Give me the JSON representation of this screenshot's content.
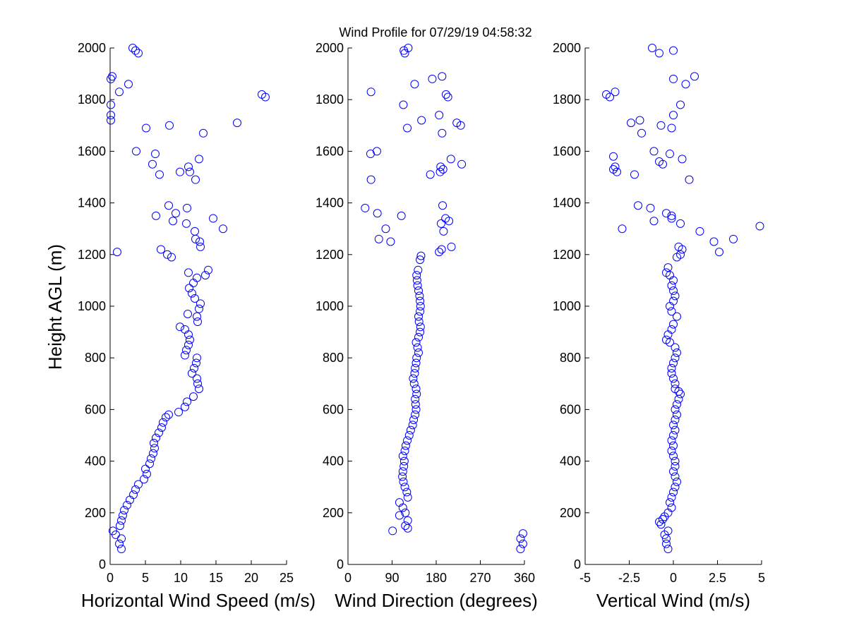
{
  "title": "Wind Profile for  07/29/19 04:58:32",
  "ylabel": "Height AGL (m)",
  "colors": {
    "marker": "#0000ff",
    "axis": "#000000",
    "background": "#ffffff"
  },
  "chart_data": [
    {
      "type": "scatter",
      "xlabel": "Horizontal Wind Speed (m/s)",
      "ylabel": "Height AGL (m)",
      "xlim": [
        0,
        25
      ],
      "ylim": [
        0,
        2000
      ],
      "xticks": [
        0,
        5,
        10,
        15,
        20,
        25
      ],
      "xtick_labels": [
        "0",
        "5",
        "10",
        "15",
        "20",
        "25"
      ],
      "yticks": [
        0,
        200,
        400,
        600,
        800,
        1000,
        1200,
        1400,
        1600,
        1800,
        2000
      ],
      "ytick_labels": [
        "0",
        "200",
        "400",
        "600",
        "800",
        "1000",
        "1200",
        "1400",
        "1600",
        "1800",
        "2000"
      ],
      "points": [
        [
          1.6,
          60
        ],
        [
          1.3,
          80
        ],
        [
          1.6,
          100
        ],
        [
          0.8,
          115
        ],
        [
          0.4,
          130
        ],
        [
          1.4,
          150
        ],
        [
          1.6,
          170
        ],
        [
          1.8,
          190
        ],
        [
          2.0,
          210
        ],
        [
          2.4,
          230
        ],
        [
          2.8,
          250
        ],
        [
          3.3,
          270
        ],
        [
          3.6,
          290
        ],
        [
          4.0,
          310
        ],
        [
          4.8,
          330
        ],
        [
          5.2,
          350
        ],
        [
          5.0,
          370
        ],
        [
          5.6,
          390
        ],
        [
          5.8,
          410
        ],
        [
          6.1,
          430
        ],
        [
          6.3,
          450
        ],
        [
          6.2,
          470
        ],
        [
          6.5,
          490
        ],
        [
          6.9,
          510
        ],
        [
          7.3,
          530
        ],
        [
          7.5,
          550
        ],
        [
          7.9,
          570
        ],
        [
          8.3,
          580
        ],
        [
          9.7,
          590
        ],
        [
          10.6,
          610
        ],
        [
          10.9,
          630
        ],
        [
          11.8,
          650
        ],
        [
          12.6,
          680
        ],
        [
          12.4,
          700
        ],
        [
          12.3,
          720
        ],
        [
          11.6,
          740
        ],
        [
          11.9,
          760
        ],
        [
          12.2,
          780
        ],
        [
          12.3,
          800
        ],
        [
          10.6,
          810
        ],
        [
          10.8,
          830
        ],
        [
          11.1,
          850
        ],
        [
          11.3,
          870
        ],
        [
          11.1,
          890
        ],
        [
          9.9,
          920
        ],
        [
          10.6,
          910
        ],
        [
          12.4,
          940
        ],
        [
          12.3,
          960
        ],
        [
          11.0,
          970
        ],
        [
          12.6,
          990
        ],
        [
          12.8,
          1010
        ],
        [
          12.0,
          1030
        ],
        [
          11.6,
          1050
        ],
        [
          11.2,
          1070
        ],
        [
          11.8,
          1090
        ],
        [
          12.3,
          1110
        ],
        [
          11.1,
          1130
        ],
        [
          13.5,
          1120
        ],
        [
          13.9,
          1140
        ],
        [
          8.1,
          1200
        ],
        [
          8.7,
          1190
        ],
        [
          7.2,
          1220
        ],
        [
          12.8,
          1230
        ],
        [
          12.7,
          1250
        ],
        [
          12.1,
          1260
        ],
        [
          12.0,
          1290
        ],
        [
          16.0,
          1300
        ],
        [
          10.8,
          1320
        ],
        [
          8.9,
          1330
        ],
        [
          14.6,
          1340
        ],
        [
          6.5,
          1350
        ],
        [
          9.3,
          1360
        ],
        [
          10.9,
          1380
        ],
        [
          8.3,
          1390
        ],
        [
          12.1,
          1490
        ],
        [
          7.0,
          1510
        ],
        [
          9.9,
          1520
        ],
        [
          11.3,
          1520
        ],
        [
          11.1,
          1540
        ],
        [
          6.0,
          1550
        ],
        [
          12.6,
          1570
        ],
        [
          6.4,
          1590
        ],
        [
          3.7,
          1600
        ],
        [
          13.2,
          1670
        ],
        [
          5.1,
          1690
        ],
        [
          8.4,
          1700
        ],
        [
          18.0,
          1710
        ],
        [
          0.1,
          1720
        ],
        [
          0.1,
          1740
        ],
        [
          0.1,
          1780
        ],
        [
          21.5,
          1820
        ],
        [
          22.0,
          1810
        ],
        [
          1.3,
          1830
        ],
        [
          0.1,
          1880
        ],
        [
          0.3,
          1890
        ],
        [
          2.6,
          1860
        ],
        [
          3.2,
          2000
        ],
        [
          3.6,
          1990
        ],
        [
          4.0,
          1980
        ],
        [
          1.0,
          1210
        ]
      ]
    },
    {
      "type": "scatter",
      "xlabel": "Wind Direction (degrees)",
      "ylabel": "",
      "xlim": [
        0,
        360
      ],
      "ylim": [
        0,
        2000
      ],
      "xticks": [
        0,
        90,
        180,
        270,
        360
      ],
      "xtick_labels": [
        "0",
        "90",
        "180",
        "270",
        "360"
      ],
      "yticks": [
        0,
        200,
        400,
        600,
        800,
        1000,
        1200,
        1400,
        1600,
        1800,
        2000
      ],
      "ytick_labels": [
        "0",
        "200",
        "400",
        "600",
        "800",
        "1000",
        "1200",
        "1400",
        "1600",
        "1800",
        "2000"
      ],
      "points": [
        [
          352,
          60
        ],
        [
          357,
          80
        ],
        [
          352,
          100
        ],
        [
          357,
          120
        ],
        [
          91,
          130
        ],
        [
          122,
          140
        ],
        [
          117,
          150
        ],
        [
          122,
          170
        ],
        [
          105,
          190
        ],
        [
          117,
          200
        ],
        [
          112,
          220
        ],
        [
          105,
          240
        ],
        [
          122,
          260
        ],
        [
          120,
          280
        ],
        [
          116,
          300
        ],
        [
          113,
          320
        ],
        [
          111,
          340
        ],
        [
          112,
          360
        ],
        [
          114,
          380
        ],
        [
          115,
          400
        ],
        [
          112,
          420
        ],
        [
          116,
          440
        ],
        [
          118,
          460
        ],
        [
          121,
          480
        ],
        [
          125,
          500
        ],
        [
          128,
          520
        ],
        [
          132,
          540
        ],
        [
          134,
          560
        ],
        [
          137,
          580
        ],
        [
          139,
          600
        ],
        [
          138,
          620
        ],
        [
          137,
          640
        ],
        [
          140,
          660
        ],
        [
          139,
          680
        ],
        [
          135,
          700
        ],
        [
          133,
          720
        ],
        [
          136,
          740
        ],
        [
          137,
          760
        ],
        [
          139,
          780
        ],
        [
          140,
          800
        ],
        [
          144,
          820
        ],
        [
          142,
          840
        ],
        [
          139,
          860
        ],
        [
          144,
          880
        ],
        [
          147,
          900
        ],
        [
          148,
          920
        ],
        [
          145,
          940
        ],
        [
          144,
          960
        ],
        [
          147,
          980
        ],
        [
          148,
          1000
        ],
        [
          147,
          1020
        ],
        [
          146,
          1040
        ],
        [
          144,
          1060
        ],
        [
          142,
          1080
        ],
        [
          141,
          1100
        ],
        [
          140,
          1120
        ],
        [
          143,
          1140
        ],
        [
          147,
          1180
        ],
        [
          149,
          1195
        ],
        [
          186,
          1210
        ],
        [
          191,
          1220
        ],
        [
          195,
          1290
        ],
        [
          190,
          1320
        ],
        [
          206,
          1330
        ],
        [
          199,
          1340
        ],
        [
          211,
          1230
        ],
        [
          87,
          1250
        ],
        [
          63,
          1260
        ],
        [
          77,
          1300
        ],
        [
          109,
          1350
        ],
        [
          60,
          1360
        ],
        [
          35,
          1380
        ],
        [
          193,
          1390
        ],
        [
          168,
          1510
        ],
        [
          188,
          1520
        ],
        [
          194,
          1530
        ],
        [
          189,
          1540
        ],
        [
          232,
          1550
        ],
        [
          210,
          1570
        ],
        [
          46,
          1590
        ],
        [
          59,
          1600
        ],
        [
          192,
          1670
        ],
        [
          222,
          1710
        ],
        [
          230,
          1700
        ],
        [
          121,
          1690
        ],
        [
          150,
          1720
        ],
        [
          186,
          1740
        ],
        [
          113,
          1780
        ],
        [
          200,
          1820
        ],
        [
          204,
          1810
        ],
        [
          47,
          1830
        ],
        [
          136,
          1860
        ],
        [
          172,
          1880
        ],
        [
          192,
          1890
        ],
        [
          114,
          1990
        ],
        [
          116,
          1980
        ],
        [
          123,
          2000
        ],
        [
          47,
          1490
        ]
      ]
    },
    {
      "type": "scatter",
      "xlabel": "Vertical Wind (m/s)",
      "ylabel": "",
      "xlim": [
        -5,
        5
      ],
      "ylim": [
        0,
        2000
      ],
      "xticks": [
        -5,
        -2.5,
        0,
        2.5,
        5
      ],
      "xtick_labels": [
        "-5",
        "-2.5",
        "0",
        "2.5",
        "5"
      ],
      "yticks": [
        0,
        200,
        400,
        600,
        800,
        1000,
        1200,
        1400,
        1600,
        1800,
        2000
      ],
      "ytick_labels": [
        "0",
        "200",
        "400",
        "600",
        "800",
        "1000",
        "1200",
        "1400",
        "1600",
        "1800",
        "2000"
      ],
      "points": [
        [
          -0.3,
          60
        ],
        [
          -0.4,
          80
        ],
        [
          -0.4,
          100
        ],
        [
          -0.5,
          115
        ],
        [
          -0.3,
          130
        ],
        [
          -0.7,
          155
        ],
        [
          -0.8,
          165
        ],
        [
          -0.6,
          175
        ],
        [
          -0.5,
          185
        ],
        [
          -0.3,
          200
        ],
        [
          -0.1,
          220
        ],
        [
          -0.2,
          240
        ],
        [
          -0.1,
          260
        ],
        [
          0.0,
          280
        ],
        [
          0.1,
          300
        ],
        [
          0.2,
          320
        ],
        [
          0.1,
          340
        ],
        [
          0.0,
          360
        ],
        [
          0.1,
          380
        ],
        [
          0.1,
          400
        ],
        [
          0.0,
          420
        ],
        [
          -0.1,
          440
        ],
        [
          0.0,
          460
        ],
        [
          -0.1,
          480
        ],
        [
          0.0,
          500
        ],
        [
          0.1,
          520
        ],
        [
          0.0,
          540
        ],
        [
          0.1,
          560
        ],
        [
          0.2,
          580
        ],
        [
          0.1,
          600
        ],
        [
          0.2,
          620
        ],
        [
          0.3,
          640
        ],
        [
          0.4,
          660
        ],
        [
          0.3,
          670
        ],
        [
          0.1,
          680
        ],
        [
          0.1,
          700
        ],
        [
          0.0,
          720
        ],
        [
          -0.1,
          740
        ],
        [
          -0.1,
          760
        ],
        [
          0.0,
          780
        ],
        [
          0.1,
          800
        ],
        [
          0.2,
          820
        ],
        [
          0.1,
          840
        ],
        [
          -0.2,
          860
        ],
        [
          -0.4,
          870
        ],
        [
          -0.3,
          890
        ],
        [
          -0.1,
          910
        ],
        [
          0.0,
          930
        ],
        [
          0.2,
          960
        ],
        [
          -0.1,
          980
        ],
        [
          -0.2,
          1000
        ],
        [
          0.0,
          1020
        ],
        [
          0.1,
          1040
        ],
        [
          0.0,
          1060
        ],
        [
          -0.1,
          1080
        ],
        [
          0.0,
          1100
        ],
        [
          -0.2,
          1120
        ],
        [
          -0.4,
          1130
        ],
        [
          -0.3,
          1150
        ],
        [
          0.2,
          1190
        ],
        [
          0.4,
          1200
        ],
        [
          2.6,
          1210
        ],
        [
          0.5,
          1220
        ],
        [
          0.3,
          1230
        ],
        [
          2.3,
          1250
        ],
        [
          3.4,
          1260
        ],
        [
          1.5,
          1290
        ],
        [
          -2.9,
          1300
        ],
        [
          4.9,
          1310
        ],
        [
          0.4,
          1320
        ],
        [
          -1.1,
          1330
        ],
        [
          -0.1,
          1340
        ],
        [
          -0.1,
          1350
        ],
        [
          -0.4,
          1360
        ],
        [
          -1.3,
          1380
        ],
        [
          -2.0,
          1390
        ],
        [
          0.9,
          1490
        ],
        [
          -2.2,
          1510
        ],
        [
          -3.2,
          1520
        ],
        [
          -3.4,
          1530
        ],
        [
          -3.3,
          1540
        ],
        [
          -0.6,
          1550
        ],
        [
          -0.8,
          1560
        ],
        [
          0.5,
          1570
        ],
        [
          -3.4,
          1580
        ],
        [
          -0.2,
          1590
        ],
        [
          -1.1,
          1600
        ],
        [
          -1.8,
          1670
        ],
        [
          -0.1,
          1690
        ],
        [
          -0.7,
          1700
        ],
        [
          -2.4,
          1710
        ],
        [
          -1.9,
          1720
        ],
        [
          0.0,
          1740
        ],
        [
          0.4,
          1780
        ],
        [
          -3.8,
          1820
        ],
        [
          -3.6,
          1810
        ],
        [
          -3.3,
          1830
        ],
        [
          0.7,
          1860
        ],
        [
          0.0,
          1880
        ],
        [
          1.2,
          1890
        ],
        [
          -1.2,
          2000
        ],
        [
          -0.8,
          1980
        ],
        [
          0.0,
          1990
        ]
      ]
    }
  ]
}
